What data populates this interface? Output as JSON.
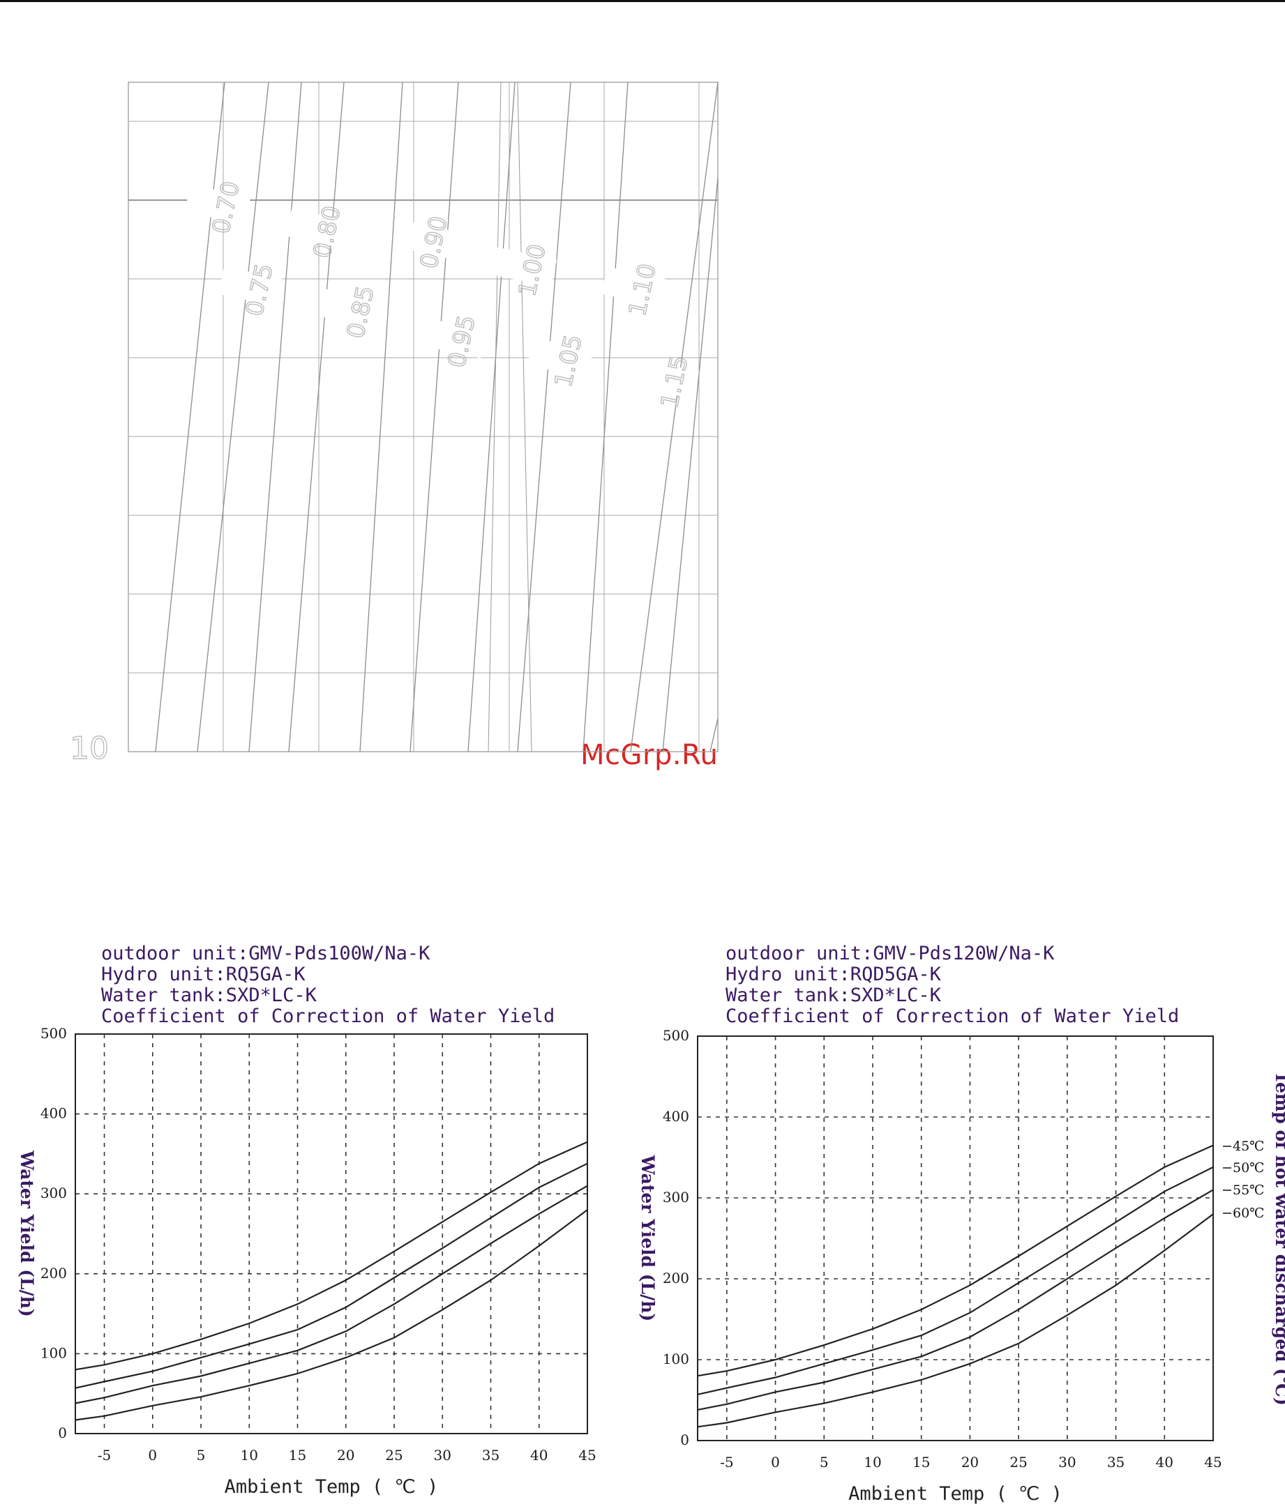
{
  "watermark": "McGrp.Ru",
  "colors": {
    "header_text": "#3a1a62",
    "watermark": "#d72525",
    "contour_text": "#b8b8b8",
    "curve": "#222222"
  },
  "chart_data": [
    {
      "type": "line",
      "title": "",
      "contour_labels": [
        "0.70",
        "0.75",
        "0.80",
        "0.85",
        "0.90",
        "0.95",
        "1.00",
        "1.05",
        "1.10",
        "1.15"
      ],
      "y_corner_label": "10",
      "grid": true
    },
    {
      "type": "line",
      "header": [
        "outdoor unit:GMV-Pds100W/Na-K",
        "Hydro unit:RQ5GA-K",
        "Water tank:SXD*LC-K",
        "Coefficient of Correction of Water Yield"
      ],
      "xlabel": "Ambient Temp ( ℃ )",
      "ylabel": "Water Yield (L/h)",
      "xlim": [
        -8,
        45
      ],
      "ylim": [
        0,
        500
      ],
      "x_ticks": [
        -5,
        0,
        5,
        10,
        15,
        20,
        25,
        30,
        35,
        40,
        45
      ],
      "y_ticks": [
        0,
        100,
        200,
        300,
        400,
        500
      ],
      "grid": true,
      "x": [
        -8,
        -5,
        0,
        5,
        10,
        15,
        20,
        25,
        30,
        35,
        40,
        45
      ],
      "series": [
        {
          "values": [
            80,
            86,
            100,
            118,
            138,
            162,
            192,
            228,
            265,
            302,
            338,
            365
          ]
        },
        {
          "values": [
            57,
            65,
            78,
            95,
            112,
            130,
            158,
            195,
            232,
            270,
            308,
            338
          ]
        },
        {
          "values": [
            38,
            45,
            60,
            72,
            88,
            104,
            128,
            162,
            200,
            238,
            275,
            310
          ]
        },
        {
          "values": [
            17,
            22,
            35,
            46,
            60,
            75,
            95,
            120,
            155,
            192,
            235,
            280
          ]
        }
      ]
    },
    {
      "type": "line",
      "header": [
        "outdoor unit:GMV-Pds120W/Na-K",
        "Hydro unit:RQD5GA-K",
        "Water tank:SXD*LC-K",
        "Coefficient of Correction of Water Yield"
      ],
      "xlabel": "Ambient Temp ( ℃ )",
      "ylabel": "Water Yield (L/h)",
      "y2label": "Temp of hot water discharged (℃)",
      "xlim": [
        -8,
        45
      ],
      "ylim": [
        0,
        500
      ],
      "x_ticks": [
        -5,
        0,
        5,
        10,
        15,
        20,
        25,
        30,
        35,
        40,
        45
      ],
      "y_ticks": [
        0,
        100,
        200,
        300,
        400,
        500
      ],
      "grid": true,
      "x": [
        -8,
        -5,
        0,
        5,
        10,
        15,
        20,
        25,
        30,
        35,
        40,
        45
      ],
      "series": [
        {
          "name": "45℃",
          "values": [
            80,
            86,
            100,
            118,
            138,
            162,
            192,
            228,
            265,
            302,
            338,
            365
          ]
        },
        {
          "name": "50℃",
          "values": [
            57,
            65,
            78,
            95,
            112,
            130,
            158,
            195,
            232,
            270,
            308,
            338
          ]
        },
        {
          "name": "55℃",
          "values": [
            38,
            45,
            60,
            72,
            88,
            104,
            128,
            162,
            200,
            238,
            275,
            310
          ]
        },
        {
          "name": "60℃",
          "values": [
            17,
            22,
            35,
            46,
            60,
            75,
            95,
            120,
            155,
            192,
            235,
            280
          ]
        }
      ]
    }
  ]
}
